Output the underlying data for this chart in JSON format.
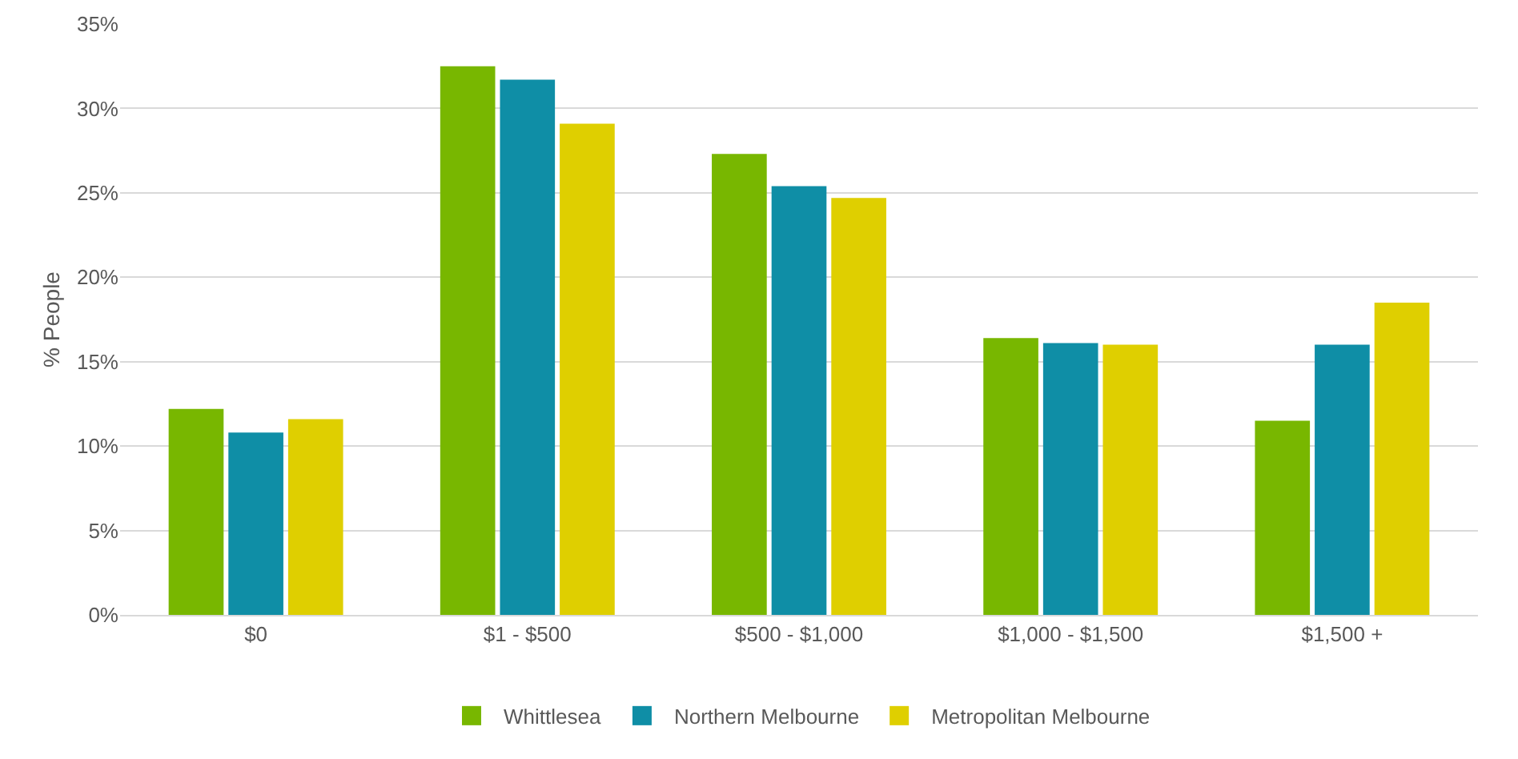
{
  "chart_data": {
    "type": "bar",
    "ylabel": "% People",
    "categories": [
      "$0",
      "$1 - $500",
      "$500 - $1,000",
      "$1,000 - $1,500",
      "$1,500 +"
    ],
    "series": [
      {
        "name": "Whittlesea",
        "color": "#78b700",
        "values": [
          12.2,
          32.5,
          27.3,
          16.4,
          11.5
        ]
      },
      {
        "name": "Northern Melbourne",
        "color": "#0f8ea6",
        "values": [
          10.8,
          31.7,
          25.4,
          16.1,
          16.0
        ]
      },
      {
        "name": "Metropolitan Melbourne",
        "color": "#dfcf00",
        "values": [
          11.6,
          29.1,
          24.7,
          16.0,
          18.5
        ]
      }
    ],
    "ylim": [
      0,
      35
    ],
    "yticks": [
      {
        "value": 0,
        "label": "0%"
      },
      {
        "value": 5,
        "label": "5%"
      },
      {
        "value": 10,
        "label": "10%"
      },
      {
        "value": 15,
        "label": "15%"
      },
      {
        "value": 20,
        "label": "20%"
      },
      {
        "value": 25,
        "label": "25%"
      },
      {
        "value": 30,
        "label": "30%"
      },
      {
        "value": 35,
        "label": "35%"
      }
    ],
    "grid": "y",
    "legend": "bottom"
  }
}
